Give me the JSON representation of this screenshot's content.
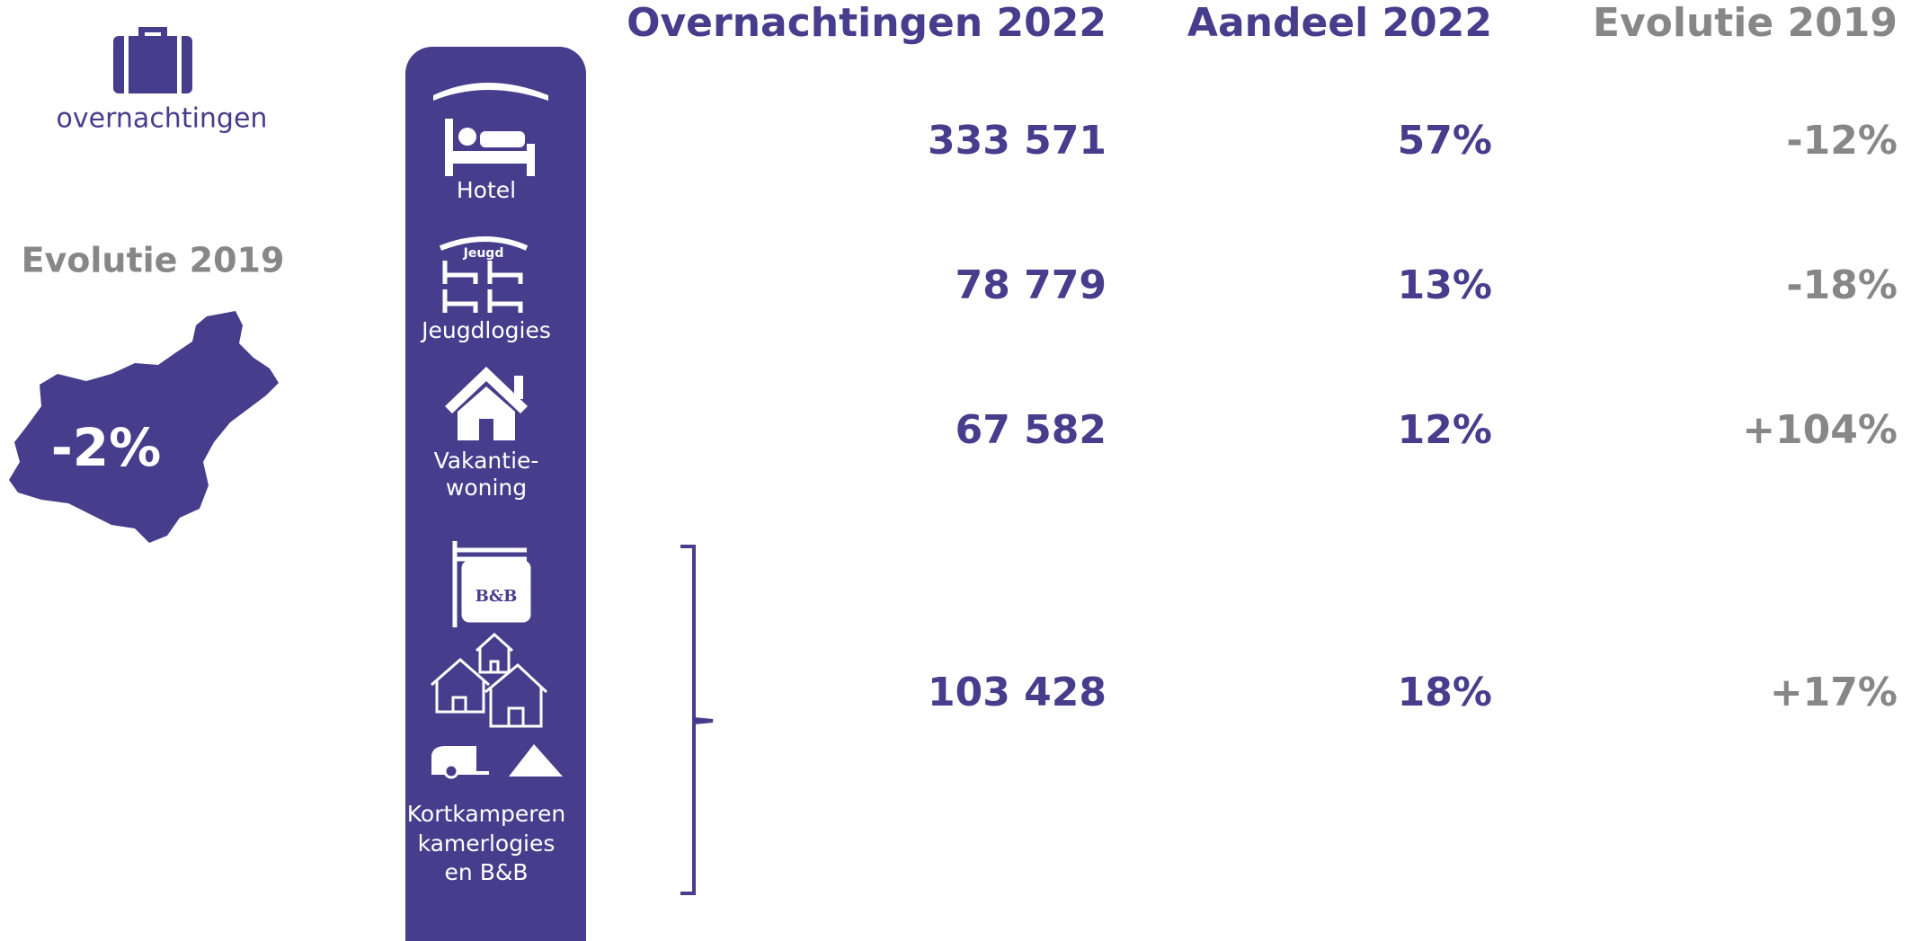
{
  "sidebar": {
    "label": "overnachtingen",
    "evolution_title": "Evolutie 2019",
    "evolution_value": "-2%"
  },
  "table": {
    "headers": [
      "Overnachtingen 2022",
      "Aandeel 2022",
      "Evolutie 2019"
    ],
    "rows": [
      {
        "icon_text": "Hotel",
        "category": [
          "Hotel"
        ],
        "values": [
          "333 571",
          "57%",
          "-12%"
        ]
      },
      {
        "icon_text": "Jeugd",
        "category": [
          "Jeugdlogies"
        ],
        "values": [
          "78 779",
          "13%",
          "-18%"
        ]
      },
      {
        "icon_text": null,
        "category": [
          "Vakantie-",
          "woning"
        ],
        "values": [
          "67 582",
          "12%",
          "+104%"
        ]
      },
      {
        "icon_text": "B&B",
        "category": [
          "Kortkamperen",
          "kamerlogies",
          "en B&B"
        ],
        "values": [
          "103 428",
          "18%",
          "+17%"
        ]
      }
    ]
  }
}
